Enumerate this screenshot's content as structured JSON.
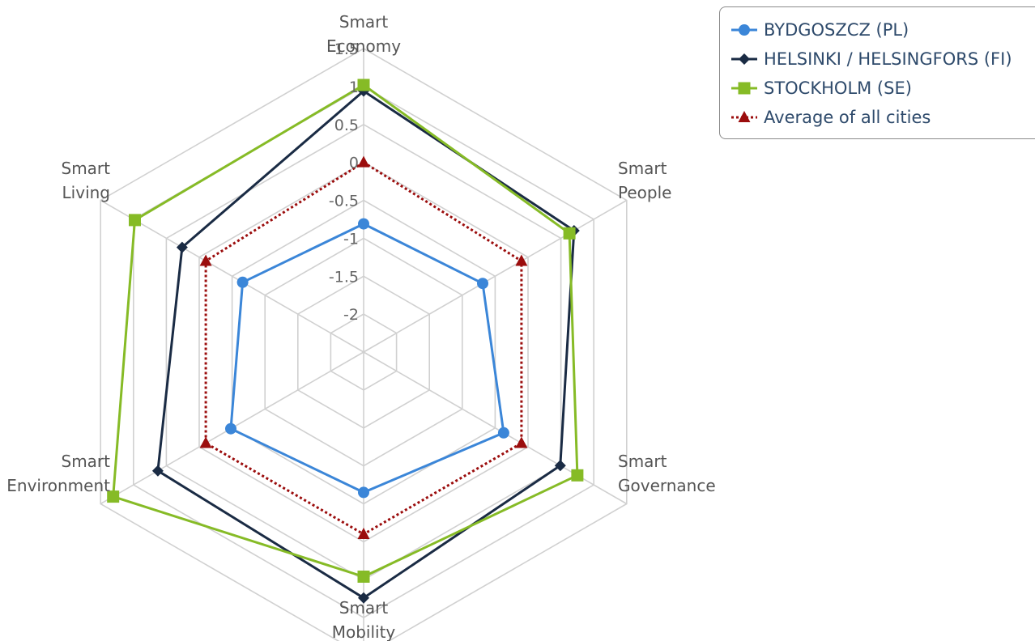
{
  "chart_data": {
    "type": "radar",
    "axes": [
      [
        "Smart",
        "Economy"
      ],
      [
        "Smart",
        "People"
      ],
      [
        "Smart",
        "Governance"
      ],
      [
        "Smart",
        "Mobility"
      ],
      [
        "Smart",
        "Environment"
      ],
      [
        "Smart",
        "Living"
      ]
    ],
    "rlim": [
      -2.5,
      1.5
    ],
    "ticks": [
      "-2",
      "-1.5",
      "-1",
      "-0.5",
      "0",
      "0.5",
      "1",
      "1.5"
    ],
    "tick_values": [
      -2,
      -1.5,
      -1,
      -0.5,
      0,
      0.5,
      1,
      1.5
    ],
    "grid": true,
    "legend_position": "top-right",
    "series": [
      {
        "name": "BYDGOSZCZ (PL)",
        "color": "#3b86d8",
        "marker": "circle",
        "dash": "solid",
        "values": [
          -0.81,
          -0.69,
          -0.37,
          -0.65,
          -0.48,
          -0.66
        ]
      },
      {
        "name": "HELSINKI / HELSINGFORS (FI)",
        "color": "#1a2b44",
        "marker": "diamond",
        "dash": "solid",
        "values": [
          0.94,
          0.7,
          0.49,
          0.74,
          0.63,
          0.26
        ]
      },
      {
        "name": "STOCKHOLM (SE)",
        "color": "#86bb26",
        "marker": "square",
        "dash": "solid",
        "values": [
          1.02,
          0.63,
          0.75,
          0.46,
          1.31,
          0.98
        ]
      },
      {
        "name": "Average of all cities",
        "color": "#9b0d0d",
        "marker": "triangle",
        "dash": "dotted",
        "values": [
          0.0,
          -0.1,
          -0.1,
          -0.1,
          -0.1,
          -0.1
        ]
      }
    ]
  }
}
